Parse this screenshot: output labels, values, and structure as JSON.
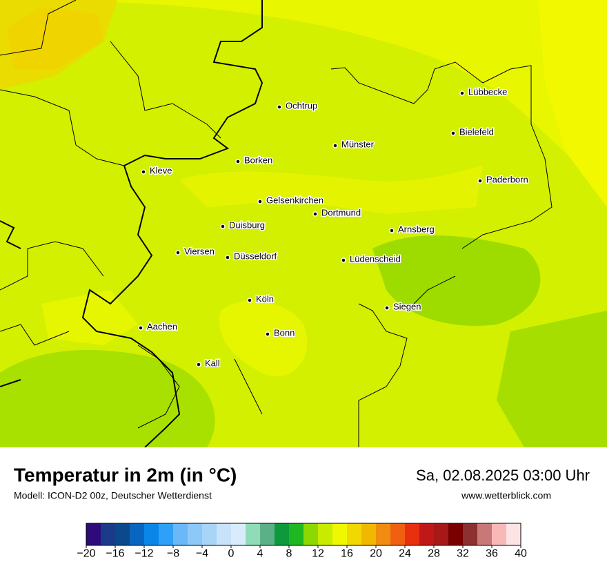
{
  "header": {
    "title": "Temperatur in 2m (in °C)",
    "model": "Modell: ICON-D2 00z, Deutscher Wetterdienst",
    "datetime": "Sa, 02.08.2025 03:00 Uhr",
    "url": "www.wetterblick.com"
  },
  "cities": [
    {
      "label": "Lübbecke"
    },
    {
      "label": "Ochtrup"
    },
    {
      "label": "Bielefeld"
    },
    {
      "label": "Münster"
    },
    {
      "label": "Borken"
    },
    {
      "label": "Kleve"
    },
    {
      "label": "Paderborn"
    },
    {
      "label": "Gelsenkirchen"
    },
    {
      "label": "Dortmund"
    },
    {
      "label": "Duisburg"
    },
    {
      "label": "Arnsberg"
    },
    {
      "label": "Viersen"
    },
    {
      "label": "Düsseldorf"
    },
    {
      "label": "Lüdenscheid"
    },
    {
      "label": "Köln"
    },
    {
      "label": "Siegen"
    },
    {
      "label": "Aachen"
    },
    {
      "label": "Bonn"
    },
    {
      "label": "Kall"
    }
  ],
  "colorbar": {
    "colors": [
      "#2e0a7a",
      "#1a3a8a",
      "#0a4a8c",
      "#0866c0",
      "#0a86e8",
      "#2ea0f8",
      "#6ab8f8",
      "#8cc8f8",
      "#a8d4f8",
      "#c8e2fa",
      "#d8ecfc",
      "#90dcb8",
      "#5cb088",
      "#0c9a3c",
      "#20b820",
      "#8cd800",
      "#c8ec00",
      "#f0f800",
      "#f0d800",
      "#f0b800",
      "#f08c10",
      "#f06010",
      "#e83010",
      "#c01818",
      "#a81818",
      "#7a0000",
      "#8c3030",
      "#c87878",
      "#f8b8b8",
      "#fce4e4"
    ],
    "ticks": [
      {
        "value": -20,
        "label": "−20"
      },
      {
        "value": -16,
        "label": "−16"
      },
      {
        "value": -12,
        "label": "−12"
      },
      {
        "value": -8,
        "label": "−8"
      },
      {
        "value": -4,
        "label": "−4"
      },
      0,
      4,
      8,
      12,
      16,
      20,
      24,
      28,
      32,
      36,
      40
    ]
  }
}
